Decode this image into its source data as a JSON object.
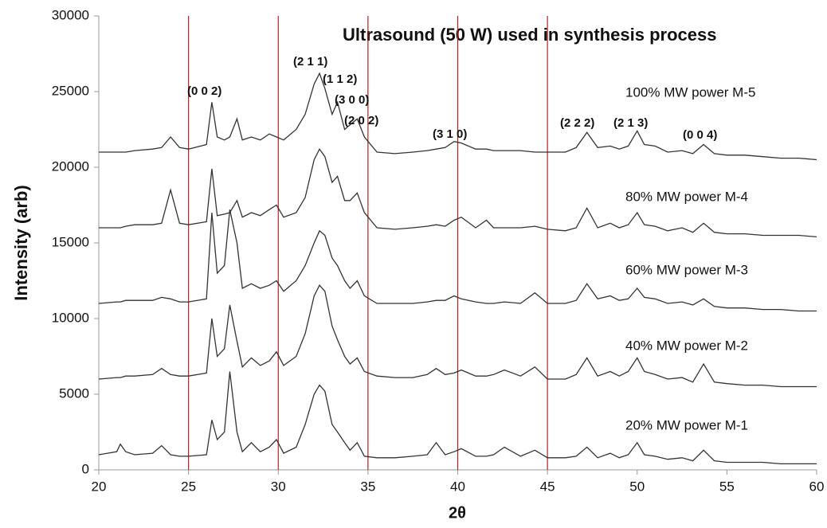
{
  "chart_data": {
    "type": "line",
    "title": "Ultrasound (50 W) used in synthesis process",
    "xlabel": "2θ",
    "ylabel": "Intensity (arb)",
    "x": [
      20,
      21,
      21.2,
      21.5,
      22,
      23,
      23.5,
      24,
      24.5,
      25,
      26,
      26.3,
      26.6,
      27,
      27.3,
      27.7,
      28,
      28.5,
      29,
      29.5,
      29.9,
      30.3,
      31,
      31.5,
      32,
      32.3,
      32.6,
      33,
      33.3,
      33.7,
      34,
      34.4,
      34.8,
      35.5,
      36.5,
      37.5,
      38.3,
      38.8,
      39.3,
      39.8,
      40.2,
      41,
      41.6,
      42,
      42.6,
      43.5,
      44.3,
      45,
      46,
      46.6,
      47.2,
      47.8,
      48.5,
      49,
      49.5,
      50,
      50.4,
      51,
      51.7,
      52.5,
      53.1,
      53.7,
      54.3,
      55,
      56,
      57,
      58,
      59,
      60
    ],
    "series": [
      {
        "name": "100% MW power M-5",
        "color": "#333333",
        "values": [
          21000,
          21000,
          21000,
          21000,
          21100,
          21200,
          21300,
          22000,
          21300,
          21200,
          21500,
          24300,
          22000,
          21800,
          22000,
          23200,
          21800,
          22000,
          21800,
          22200,
          22000,
          21800,
          22500,
          23500,
          25500,
          26200,
          25200,
          23500,
          24300,
          22500,
          22800,
          23200,
          22000,
          21000,
          20900,
          21000,
          21100,
          21200,
          21300,
          21700,
          21600,
          21200,
          21200,
          21100,
          21100,
          21100,
          21000,
          21000,
          21000,
          21300,
          22300,
          21300,
          21400,
          21200,
          21400,
          22400,
          21500,
          21400,
          21000,
          21100,
          20900,
          21500,
          20900,
          20800,
          20800,
          20700,
          20600,
          20600,
          20500
        ]
      },
      {
        "name": "80% MW power M-4",
        "color": "#333333",
        "values": [
          16000,
          16000,
          16000,
          16100,
          16200,
          16200,
          16300,
          18500,
          16300,
          16200,
          16400,
          19900,
          16800,
          16900,
          17000,
          17800,
          16700,
          17000,
          16800,
          17200,
          17500,
          16700,
          17000,
          18000,
          20500,
          21200,
          20700,
          19000,
          19400,
          17800,
          17800,
          18300,
          17000,
          16000,
          15900,
          16000,
          16100,
          16200,
          16100,
          16500,
          16700,
          16000,
          16500,
          16000,
          16000,
          16000,
          16100,
          15900,
          15800,
          16000,
          17300,
          16000,
          16300,
          16000,
          16200,
          17000,
          16200,
          16100,
          15800,
          16000,
          15700,
          16300,
          15700,
          15600,
          15600,
          15500,
          15500,
          15500,
          15400
        ]
      },
      {
        "name": "60% MW power M-3",
        "color": "#333333",
        "values": [
          11000,
          11100,
          11100,
          11200,
          11200,
          11200,
          11400,
          11300,
          11100,
          11100,
          11300,
          17000,
          13000,
          13500,
          17200,
          15000,
          12000,
          12300,
          12000,
          12200,
          12500,
          11800,
          12500,
          13500,
          15000,
          15800,
          15500,
          14000,
          13500,
          12500,
          12000,
          12500,
          11500,
          11000,
          11000,
          11000,
          11100,
          11200,
          11200,
          11500,
          11300,
          11100,
          11000,
          11000,
          11100,
          11000,
          11700,
          11000,
          11000,
          11200,
          12300,
          11300,
          11500,
          11200,
          11300,
          12000,
          11400,
          11300,
          11000,
          11100,
          10900,
          11300,
          10800,
          10700,
          10700,
          10600,
          10600,
          10500,
          10500
        ]
      },
      {
        "name": "40% MW power M-2",
        "color": "#333333",
        "values": [
          6000,
          6100,
          6100,
          6200,
          6200,
          6300,
          6700,
          6300,
          6200,
          6200,
          6400,
          10000,
          7500,
          8000,
          10900,
          8500,
          6800,
          7400,
          6900,
          7200,
          7800,
          6900,
          7500,
          9000,
          11500,
          12200,
          11800,
          9500,
          8600,
          7500,
          7000,
          7400,
          6500,
          6200,
          6100,
          6100,
          6300,
          6700,
          6300,
          6400,
          6600,
          6200,
          6200,
          6300,
          6600,
          6200,
          6800,
          6000,
          6000,
          6300,
          7400,
          6200,
          6500,
          6200,
          6500,
          7400,
          6500,
          6300,
          6000,
          6100,
          5800,
          7000,
          5800,
          5700,
          5600,
          5600,
          5500,
          5500,
          5500
        ]
      },
      {
        "name": "20% MW power M-1",
        "color": "#333333",
        "values": [
          1000,
          1200,
          1700,
          1200,
          1000,
          1100,
          1600,
          1000,
          900,
          900,
          1000,
          3300,
          2000,
          2500,
          6500,
          2500,
          1200,
          1800,
          1200,
          1500,
          2000,
          1100,
          1500,
          3000,
          5000,
          5600,
          5200,
          3000,
          2500,
          1800,
          1300,
          1800,
          900,
          800,
          800,
          900,
          1000,
          1800,
          1000,
          1200,
          1400,
          900,
          900,
          1000,
          1500,
          900,
          1300,
          800,
          800,
          900,
          1500,
          800,
          1100,
          800,
          1000,
          1800,
          1000,
          900,
          700,
          800,
          600,
          1300,
          600,
          500,
          500,
          500,
          400,
          400,
          400
        ]
      }
    ],
    "annotations": [
      "(0 0 2)",
      "(2 1 1)",
      "(1 1 2)",
      "(3 0 0)",
      "(2 0 2)",
      "(3 1 0)",
      "(2 2 2)",
      "(2 1 3)",
      "(0 0 4)"
    ],
    "reference_lines": [
      25,
      30,
      35,
      40,
      45
    ],
    "reference_color": "#b22222",
    "xlim": [
      20,
      60
    ],
    "xticks": [
      20,
      25,
      30,
      35,
      40,
      45,
      50,
      55,
      60
    ],
    "ylim": [
      0,
      30000
    ],
    "yticks": [
      0,
      5000,
      10000,
      15000,
      20000,
      25000,
      30000
    ],
    "grid": false
  }
}
